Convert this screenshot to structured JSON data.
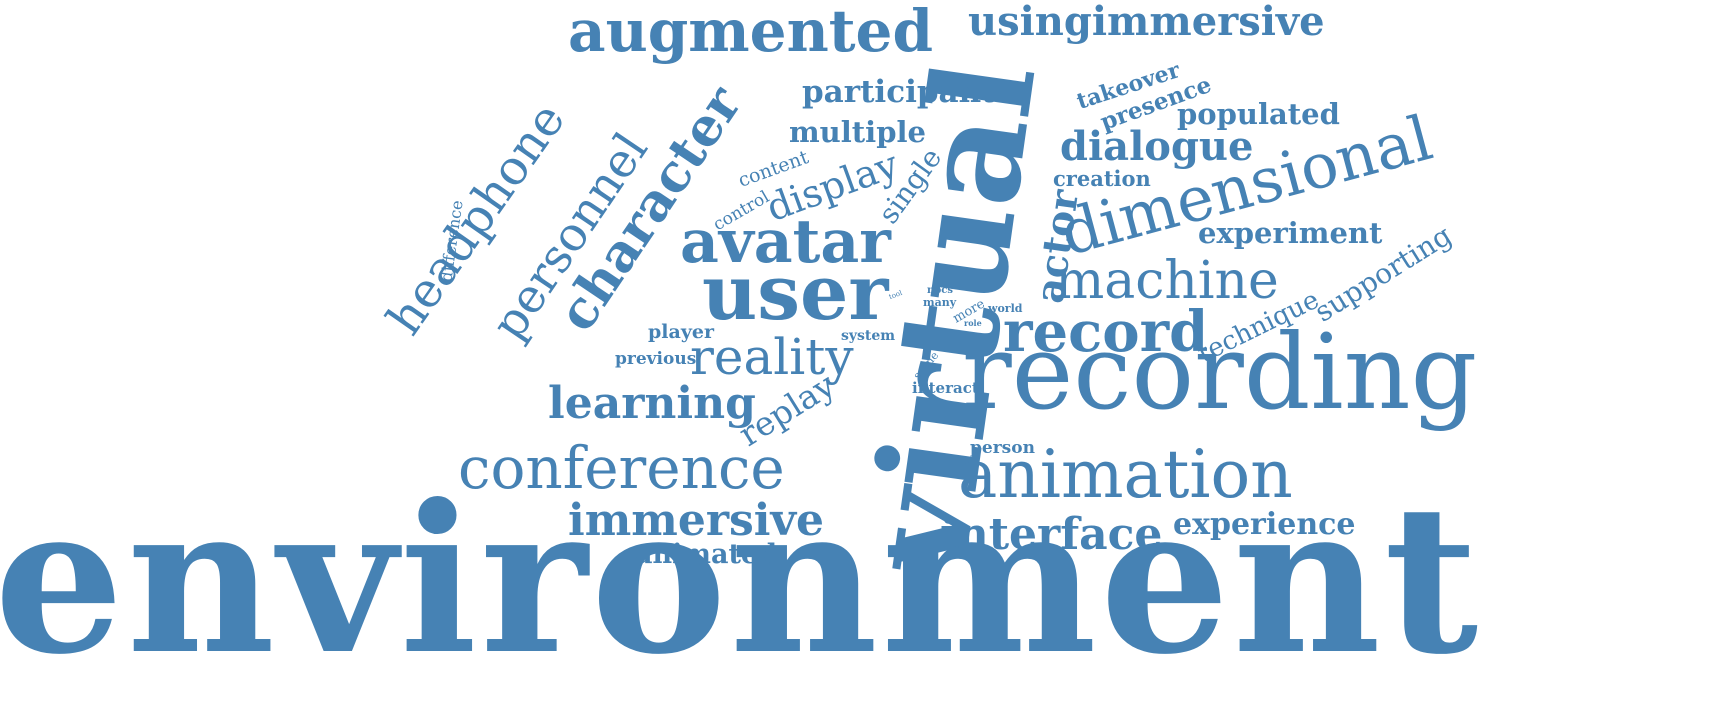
{
  "color": "#4682b4",
  "words": [
    "environment",
    "virtual",
    "recording",
    "animation",
    "user",
    "dimensional",
    "augmented",
    "character",
    "avatar",
    "reality",
    "headphone",
    "personnel",
    "conference",
    "record",
    "machine",
    "interface",
    "immersive",
    "learning",
    "usingimmersive",
    "dialogue",
    "actor",
    "display",
    "replay",
    "experiment",
    "participant",
    "experience",
    "multiple",
    "supporting",
    "populated",
    "technique",
    "animated",
    "single",
    "presence",
    "takeover",
    "creation",
    "content",
    "control",
    "difference",
    "player",
    "previous",
    "person",
    "interact",
    "system",
    "scene",
    "npcs",
    "many",
    "more",
    "world",
    "role",
    "tool"
  ]
}
